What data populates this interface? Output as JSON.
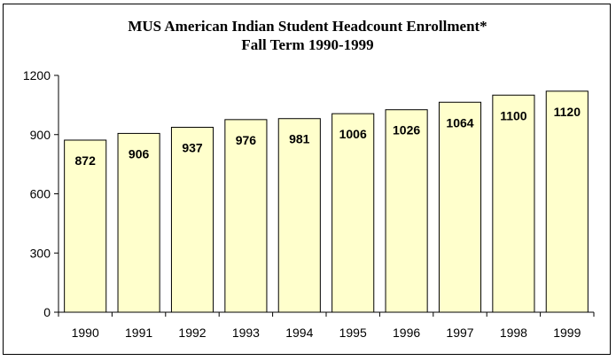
{
  "chart_data": {
    "type": "bar",
    "title": "MUS American Indian Student Headcount Enrollment*",
    "subtitle": "Fall Term 1990-1999",
    "xlabel": "",
    "ylabel": "",
    "categories": [
      "1990",
      "1991",
      "1992",
      "1993",
      "1994",
      "1995",
      "1996",
      "1997",
      "1998",
      "1999"
    ],
    "values": [
      872,
      906,
      937,
      976,
      981,
      1006,
      1026,
      1064,
      1100,
      1120
    ],
    "ylim": [
      0,
      1200
    ],
    "yticks": [
      "0",
      "300",
      "600",
      "900",
      "1200"
    ],
    "data_labels": [
      "872",
      "906",
      "937",
      "976",
      "981",
      "1006",
      "1026",
      "1064",
      "1100",
      "1120"
    ],
    "grid": false,
    "legend": "none",
    "colors": {
      "bar_fill": "#FFFFCC",
      "bar_stroke": "#000000",
      "axis": "#000000"
    }
  }
}
